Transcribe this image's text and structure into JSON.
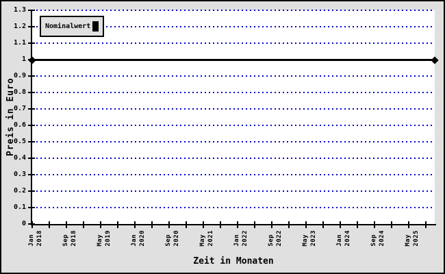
{
  "chart_data": {
    "type": "line",
    "title": "",
    "xlabel": "Zeit in Monaten",
    "ylabel": "Preis in Euro",
    "ylim": [
      0,
      1.3
    ],
    "grid": {
      "horizontal": true,
      "vertical": false,
      "style": "dotted",
      "color": "#0000cc"
    },
    "y_ticks": {
      "values": [
        0,
        0.1,
        0.2,
        0.3,
        0.4,
        0.5,
        0.6,
        0.7,
        0.8,
        0.9,
        1,
        1.1,
        1.2,
        1.3
      ],
      "labels": [
        "0",
        "0.1",
        "0.2",
        "0.3",
        "0.4",
        "0.5",
        "0.6",
        "0.7",
        "0.8",
        "0.9",
        "1",
        "1.1",
        "1.2",
        "1.3"
      ]
    },
    "x_ticks": {
      "labels": [
        "Jan 2018",
        "Sep 2018",
        "May 2019",
        "Jan 2020",
        "Sep 2020",
        "May 2021",
        "Jan 2022",
        "Sep 2022",
        "May 2023",
        "Jan 2024",
        "Sep 2024",
        "May 2025"
      ],
      "minor_ticks_between_labels": 1,
      "label_rotation": "vertical-bottom-to-top"
    },
    "series": [
      {
        "name": "Nominalwert",
        "constant_y": 1,
        "spans": "full x-axis from Jan 2018 to right edge",
        "color": "#000000",
        "line_width": 3,
        "endpoint_marker": "filled-diamond"
      }
    ],
    "legend": {
      "position": "top-left",
      "entries": [
        {
          "label": "Nominalwert",
          "marker": "black-box"
        }
      ]
    }
  },
  "colors": {
    "canvas_bg": "#e0e0e0",
    "plot_bg": "#ffffff",
    "grid": "#0000cc",
    "axis": "#000000",
    "series": "#000000",
    "legend_bg": "#e0e0e0",
    "frame_border": "#000000"
  }
}
